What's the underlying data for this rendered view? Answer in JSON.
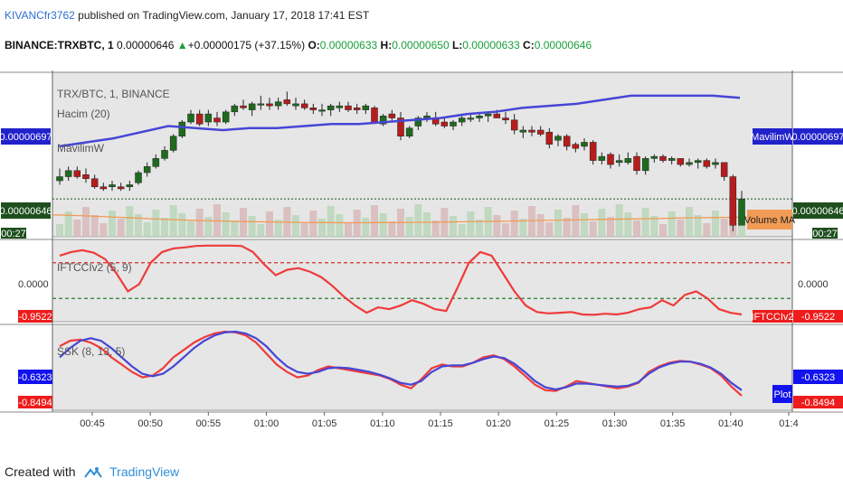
{
  "header": {
    "author": "KIVANCfr3762",
    "published": "published on TradingView.com, January 17, 2018 17:41 EST",
    "symbol": "BINANCE:TRXBTC, 1",
    "last": "0.00000646",
    "change": "+0.00000175 (+37.15%)",
    "open_label": "O:",
    "open": "0.00000633",
    "high_label": "H:",
    "high": "0.00000650",
    "low_label": "L:",
    "low": "0.00000633",
    "close_label": "C:",
    "close": "0.00000646"
  },
  "footer": {
    "created_with": "Created with",
    "brand": "TradingView"
  },
  "colors": {
    "up": "#1e6b1e",
    "down": "#b71c1c",
    "ma": "#4646d6",
    "ift": "#ef3b3b",
    "ssk_a": "#ef3b3b",
    "ssk_b": "#4646d6",
    "pane_bg": "#e6e6e6",
    "volume_ma": "#f29b55"
  },
  "chart_data": [
    {
      "type": "candlestick",
      "title": "TRX/BTC, 1, BINANCE",
      "legend": [
        "Hacim (20)",
        "MavilimW"
      ],
      "y_labels": {
        "mavilimw": "0.00000697",
        "last_price": "0.00000646",
        "time_left": "00:27"
      },
      "tags": {
        "mavilimw": "MavilimW",
        "volume_ma": "Volume MA"
      },
      "x_ticks": [
        "00:45",
        "00:50",
        "00:55",
        "01:00",
        "01:05",
        "01:10",
        "01:15",
        "01:20",
        "01:25",
        "01:30",
        "01:35",
        "01:40",
        "01:4"
      ],
      "candles_ohlc": [
        [
          655,
          661,
          653,
          657
        ],
        [
          657,
          662,
          655,
          660
        ],
        [
          660,
          662,
          656,
          657
        ],
        [
          658,
          661,
          654,
          656
        ],
        [
          656,
          658,
          651,
          652
        ],
        [
          652,
          654,
          650,
          651
        ],
        [
          652,
          655,
          650,
          653
        ],
        [
          652,
          654,
          650,
          651
        ],
        [
          652,
          655,
          650,
          653
        ],
        [
          654,
          660,
          653,
          659
        ],
        [
          659,
          664,
          657,
          662
        ],
        [
          662,
          668,
          661,
          666
        ],
        [
          666,
          672,
          665,
          670
        ],
        [
          670,
          678,
          669,
          677
        ],
        [
          677,
          685,
          676,
          684
        ],
        [
          684,
          690,
          683,
          688
        ],
        [
          688,
          690,
          682,
          683
        ],
        [
          684,
          690,
          682,
          688
        ],
        [
          686,
          689,
          682,
          684
        ],
        [
          684,
          690,
          683,
          689
        ],
        [
          689,
          693,
          687,
          692
        ],
        [
          692,
          695,
          690,
          691
        ],
        [
          690,
          694,
          687,
          693
        ],
        [
          693,
          697,
          690,
          693
        ],
        [
          693,
          696,
          690,
          692
        ],
        [
          692,
          696,
          690,
          694
        ],
        [
          695,
          699,
          692,
          693
        ],
        [
          692,
          696,
          690,
          693
        ],
        [
          693,
          695,
          690,
          691
        ],
        [
          691,
          693,
          688,
          690
        ],
        [
          690,
          693,
          687,
          690
        ],
        [
          690,
          693,
          687,
          692
        ],
        [
          691,
          694,
          689,
          692
        ],
        [
          692,
          694,
          689,
          690
        ],
        [
          691,
          693,
          688,
          690
        ],
        [
          690,
          693,
          688,
          692
        ],
        [
          691,
          692,
          683,
          684
        ],
        [
          683,
          688,
          682,
          687
        ],
        [
          688,
          690,
          684,
          686
        ],
        [
          686,
          689,
          675,
          677
        ],
        [
          677,
          682,
          676,
          681
        ],
        [
          682,
          687,
          680,
          686
        ],
        [
          686,
          689,
          684,
          687
        ],
        [
          686,
          689,
          682,
          683
        ],
        [
          684,
          686,
          681,
          682
        ],
        [
          682,
          685,
          680,
          684
        ],
        [
          684,
          687,
          682,
          686
        ],
        [
          686,
          688,
          684,
          686
        ],
        [
          686,
          689,
          684,
          687
        ],
        [
          687,
          689,
          684,
          688
        ],
        [
          688,
          690,
          686,
          686
        ],
        [
          686,
          689,
          683,
          685
        ],
        [
          685,
          688,
          678,
          680
        ],
        [
          679,
          682,
          676,
          680
        ],
        [
          680,
          682,
          677,
          679
        ],
        [
          680,
          682,
          677,
          678
        ],
        [
          679,
          681,
          671,
          673
        ],
        [
          675,
          678,
          672,
          677
        ],
        [
          677,
          678,
          670,
          672
        ],
        [
          673,
          674,
          669,
          671
        ],
        [
          672,
          676,
          670,
          674
        ],
        [
          674,
          675,
          663,
          665
        ],
        [
          665,
          669,
          663,
          667
        ],
        [
          668,
          669,
          661,
          663
        ],
        [
          664,
          668,
          662,
          665
        ],
        [
          664,
          669,
          663,
          666
        ],
        [
          667,
          669,
          658,
          660
        ],
        [
          660,
          667,
          658,
          666
        ],
        [
          666,
          668,
          664,
          667
        ],
        [
          667,
          668,
          664,
          665
        ],
        [
          665,
          667,
          663,
          666
        ],
        [
          666,
          666,
          662,
          663
        ],
        [
          663,
          666,
          662,
          664
        ],
        [
          664,
          666,
          661,
          665
        ],
        [
          665,
          666,
          661,
          662
        ],
        [
          663,
          666,
          661,
          664
        ],
        [
          664,
          664,
          655,
          657
        ],
        [
          657,
          658,
          630,
          633
        ],
        [
          633,
          650,
          633,
          646
        ]
      ],
      "mavilimw": [
        682,
        681,
        680,
        681,
        681,
        682,
        683,
        683,
        684,
        685,
        686,
        688,
        689,
        691,
        692,
        693,
        695,
        697,
        697,
        697,
        697,
        696
      ],
      "volume_ma": [
        0.74,
        0.7,
        0.64,
        0.58,
        0.52,
        0.47,
        0.43,
        0.4,
        0.38,
        0.36,
        0.35,
        0.34,
        0.35,
        0.36,
        0.37,
        0.39,
        0.41,
        0.43,
        0.46,
        0.48,
        0.51,
        0.53,
        0.55,
        0.58,
        0.6,
        0.62,
        0.63
      ]
    },
    {
      "type": "line",
      "title": "IFTCCIv2 (5, 9)",
      "y_labels": {
        "zero": "0.0000",
        "last": "-0.9522"
      },
      "tag": "IFTCCIv2",
      "ylim": [
        -1,
        1
      ],
      "series": [
        {
          "name": "IFTCCIv2",
          "values": [
            0.7,
            0.8,
            0.85,
            0.78,
            0.6,
            0.2,
            -0.3,
            -0.1,
            0.5,
            0.8,
            0.9,
            0.93,
            0.97,
            0.98,
            0.98,
            0.98,
            0.97,
            0.8,
            0.45,
            0.15,
            0.3,
            0.35,
            0.25,
            0.1,
            -0.15,
            -0.45,
            -0.7,
            -0.9,
            -0.75,
            -0.8,
            -0.7,
            -0.55,
            -0.65,
            -0.8,
            -0.85,
            -0.2,
            0.5,
            0.8,
            0.7,
            0.2,
            -0.3,
            -0.7,
            -0.88,
            -0.92,
            -0.9,
            -0.88,
            -0.95,
            -0.96,
            -0.93,
            -0.95,
            -0.9,
            -0.8,
            -0.75,
            -0.55,
            -0.7,
            -0.4,
            -0.3,
            -0.5,
            -0.8,
            -0.9,
            -0.95
          ]
        }
      ],
      "levels": [
        0.5,
        -0.5
      ]
    },
    {
      "type": "line",
      "title": "SSK (8, 13, 5)",
      "y_labels": {
        "blue": "-0.6323",
        "red": "-0.8494"
      },
      "tag": "Plot",
      "series": [
        {
          "name": "",
          "values": [
            0.6,
            0.75,
            0.78,
            0.7,
            0.55,
            0.3,
            0.1,
            -0.1,
            -0.25,
            -0.2,
            0.0,
            0.3,
            0.5,
            0.7,
            0.85,
            0.95,
            1.0,
            0.98,
            0.9,
            0.7,
            0.4,
            0.1,
            -0.1,
            -0.25,
            -0.2,
            -0.05,
            0.05,
            0.0,
            -0.05,
            -0.1,
            -0.15,
            -0.2,
            -0.3,
            -0.45,
            -0.55,
            -0.3,
            0.0,
            0.1,
            0.05,
            0.05,
            0.15,
            0.3,
            0.35,
            0.25,
            0.05,
            -0.2,
            -0.45,
            -0.6,
            -0.62,
            -0.5,
            -0.35,
            -0.4,
            -0.45,
            -0.5,
            -0.55,
            -0.5,
            -0.4,
            -0.1,
            0.05,
            0.15,
            0.2,
            0.18,
            0.1,
            0.0,
            -0.2,
            -0.5,
            -0.75
          ]
        },
        {
          "name": "",
          "values": [
            0.3,
            0.55,
            0.75,
            0.82,
            0.75,
            0.55,
            0.3,
            0.05,
            -0.15,
            -0.22,
            -0.15,
            0.05,
            0.3,
            0.55,
            0.75,
            0.9,
            0.98,
            1.0,
            0.95,
            0.82,
            0.6,
            0.3,
            0.05,
            -0.1,
            -0.15,
            -0.1,
            0.0,
            0.02,
            0.0,
            -0.05,
            -0.1,
            -0.18,
            -0.28,
            -0.4,
            -0.45,
            -0.35,
            -0.1,
            0.05,
            0.08,
            0.08,
            0.15,
            0.25,
            0.32,
            0.28,
            0.12,
            -0.1,
            -0.35,
            -0.52,
            -0.58,
            -0.52,
            -0.42,
            -0.42,
            -0.45,
            -0.48,
            -0.5,
            -0.48,
            -0.38,
            -0.15,
            0.02,
            0.12,
            0.18,
            0.18,
            0.12,
            0.02,
            -0.15,
            -0.4,
            -0.6
          ]
        }
      ]
    }
  ]
}
